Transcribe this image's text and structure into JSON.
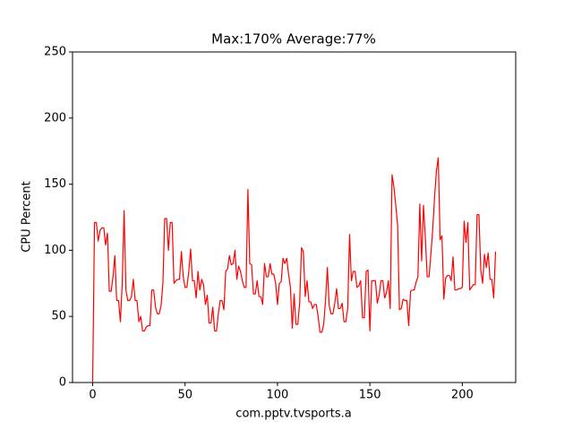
{
  "chart_data": {
    "type": "line",
    "title": "Max:170% Average:77%",
    "xlabel": "com.pptv.tvsports.a",
    "ylabel": "CPU Percent",
    "color": "#ff0000",
    "x": [
      0,
      1,
      2,
      3,
      4,
      5,
      6,
      7,
      8,
      9,
      10,
      11,
      12,
      13,
      14,
      15,
      16,
      17,
      18,
      19,
      20,
      21,
      22,
      23,
      24,
      25,
      26,
      27,
      28,
      29,
      30,
      31,
      32,
      33,
      34,
      35,
      36,
      37,
      38,
      39,
      40,
      41,
      42,
      43,
      44,
      45,
      46,
      47,
      48,
      49,
      50,
      51,
      52,
      53,
      54,
      55,
      56,
      57,
      58,
      59,
      60,
      61,
      62,
      63,
      64,
      65,
      66,
      67,
      68,
      69,
      70,
      71,
      72,
      73,
      74,
      75,
      76,
      77,
      78,
      79,
      80,
      81,
      82,
      83,
      84,
      85,
      86,
      87,
      88,
      89,
      90,
      91,
      92,
      93,
      94,
      95,
      96,
      97,
      98,
      99,
      100,
      101,
      102,
      103,
      104,
      105,
      106,
      107,
      108,
      109,
      110,
      111,
      112,
      113,
      114,
      115,
      116,
      117,
      118,
      119,
      120,
      121,
      122,
      123,
      124,
      125,
      126,
      127,
      128,
      129,
      130,
      131,
      132,
      133,
      134,
      135,
      136,
      137,
      138,
      139,
      140,
      141,
      142,
      143,
      144,
      145,
      146,
      147,
      148,
      149,
      150,
      151,
      152,
      153,
      154,
      155,
      156,
      157,
      158,
      159,
      160,
      161,
      162,
      163,
      164,
      165,
      166,
      167,
      168,
      169,
      170,
      171,
      172,
      173,
      174,
      175,
      176,
      177,
      178,
      179,
      180,
      181,
      182,
      183,
      184,
      185,
      186,
      187,
      188,
      189,
      190,
      191,
      192,
      193,
      194,
      195,
      196,
      197,
      198,
      199,
      200,
      201,
      202,
      203,
      204,
      205,
      206,
      207,
      208,
      209,
      210,
      211,
      212,
      213,
      214,
      215,
      216,
      217,
      218
    ],
    "values": [
      0,
      121,
      121,
      107,
      115,
      117,
      117,
      104,
      113,
      69,
      69,
      80,
      96,
      62,
      62,
      46,
      75,
      130,
      70,
      62,
      62,
      65,
      78,
      62,
      62,
      46,
      50,
      39,
      39,
      42,
      43,
      43,
      70,
      70,
      57,
      52,
      52,
      58,
      75,
      124,
      124,
      100,
      121,
      121,
      75,
      77,
      78,
      78,
      99,
      80,
      72,
      72,
      84,
      101,
      77,
      77,
      64,
      84,
      70,
      78,
      74,
      59,
      66,
      45,
      45,
      57,
      39,
      39,
      52,
      62,
      62,
      55,
      84,
      86,
      96,
      89,
      90,
      100,
      78,
      88,
      84,
      77,
      72,
      72,
      146,
      90,
      89,
      67,
      67,
      77,
      65,
      65,
      59,
      90,
      80,
      80,
      90,
      82,
      82,
      75,
      59,
      75,
      76,
      94,
      90,
      94,
      82,
      72,
      41,
      67,
      44,
      44,
      60,
      102,
      99,
      65,
      77,
      61,
      61,
      56,
      59,
      59,
      50,
      38,
      38,
      44,
      62,
      87,
      58,
      52,
      52,
      60,
      71,
      56,
      56,
      60,
      46,
      46,
      56,
      112,
      77,
      84,
      84,
      72,
      73,
      77,
      49,
      49,
      84,
      85,
      39,
      77,
      77,
      77,
      60,
      66,
      77,
      77,
      64,
      68,
      77,
      56,
      157,
      148,
      134,
      119,
      55,
      56,
      63,
      62,
      62,
      43,
      69,
      70,
      70,
      76,
      80,
      135,
      92,
      134,
      110,
      80,
      80,
      97,
      116,
      140,
      160,
      170,
      108,
      111,
      63,
      79,
      81,
      81,
      77,
      95,
      70,
      70,
      71,
      71,
      72,
      122,
      106,
      121,
      70,
      72,
      74,
      74,
      127,
      127,
      85,
      75,
      97,
      87,
      98,
      78,
      78,
      64,
      99
    ],
    "xlim": [
      -10.9,
      228.9
    ],
    "xticks": [
      0,
      50,
      100,
      150,
      200
    ],
    "ylim": [
      0,
      250
    ],
    "yticks": [
      0,
      50,
      100,
      150,
      200,
      250
    ]
  }
}
